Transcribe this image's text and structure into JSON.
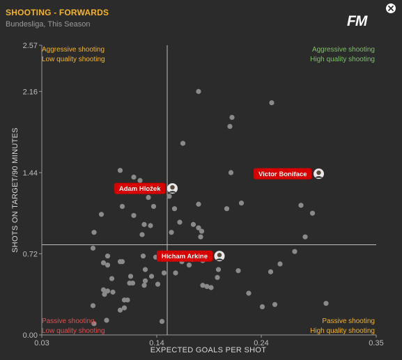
{
  "header": {
    "title": "SHOOTING - FORWARDS",
    "subtitle": "Bundesliga, This Season",
    "logo_text": "FM",
    "close_icon": "close-icon"
  },
  "quadrants": {
    "top_left": {
      "line1": "Aggressive shooting",
      "line2": "Low quality shooting",
      "color": "#f5b326"
    },
    "top_right": {
      "line1": "Aggressive shooting",
      "line2": "High quality shooting",
      "color": "#7fbf6a"
    },
    "bottom_left": {
      "line1": "Passive shooting",
      "line2": "Low quality shooting",
      "color": "#e05050"
    },
    "bottom_right": {
      "line1": "Passive shooting",
      "line2": "High quality shooting",
      "color": "#f5b326"
    }
  },
  "chart_data": {
    "type": "scatter",
    "xlabel": "EXPECTED GOALS PER SHOT",
    "ylabel": "SHOTS ON TARGET/90 MINUTES",
    "xlim": [
      0.03,
      0.35
    ],
    "ylim": [
      0.0,
      2.57
    ],
    "xticks": [
      "0.03",
      "0.14",
      "0.24",
      "0.35"
    ],
    "yticks": [
      "0.00",
      "0.72",
      "1.44",
      "2.16",
      "2.57"
    ],
    "grid": false,
    "reference_lines": {
      "x": 0.15,
      "y": 0.8
    },
    "point_color": "#8a8a8a",
    "highlight_color": "#d60000",
    "highlighted_players": [
      {
        "name": "Adam Hložek",
        "x": 0.155,
        "y": 1.3
      },
      {
        "name": "Victor Boniface",
        "x": 0.295,
        "y": 1.43
      },
      {
        "name": "Hicham Arkine",
        "x": 0.2,
        "y": 0.7
      }
    ],
    "points": [
      [
        0.18,
        2.16
      ],
      [
        0.25,
        2.06
      ],
      [
        0.212,
        1.93
      ],
      [
        0.21,
        1.85
      ],
      [
        0.165,
        1.7
      ],
      [
        0.105,
        1.46
      ],
      [
        0.211,
        1.44
      ],
      [
        0.118,
        1.4
      ],
      [
        0.124,
        1.37
      ],
      [
        0.132,
        1.32
      ],
      [
        0.132,
        1.22
      ],
      [
        0.152,
        1.23
      ],
      [
        0.221,
        1.17
      ],
      [
        0.107,
        1.14
      ],
      [
        0.137,
        1.14
      ],
      [
        0.18,
        1.16
      ],
      [
        0.278,
        1.15
      ],
      [
        0.157,
        1.12
      ],
      [
        0.207,
        1.12
      ],
      [
        0.289,
        1.08
      ],
      [
        0.087,
        1.07
      ],
      [
        0.118,
        1.06
      ],
      [
        0.162,
        1.0
      ],
      [
        0.128,
        0.98
      ],
      [
        0.134,
        0.97
      ],
      [
        0.175,
        0.98
      ],
      [
        0.18,
        0.95
      ],
      [
        0.08,
        0.91
      ],
      [
        0.126,
        0.89
      ],
      [
        0.154,
        0.91
      ],
      [
        0.182,
        0.87
      ],
      [
        0.183,
        0.92
      ],
      [
        0.282,
        0.87
      ],
      [
        0.079,
        0.77
      ],
      [
        0.093,
        0.7
      ],
      [
        0.272,
        0.74
      ],
      [
        0.127,
        0.7
      ],
      [
        0.139,
        0.69
      ],
      [
        0.157,
        0.68
      ],
      [
        0.164,
        0.65
      ],
      [
        0.174,
        0.67
      ],
      [
        0.171,
        0.62
      ],
      [
        0.184,
        0.66
      ],
      [
        0.089,
        0.64
      ],
      [
        0.105,
        0.65
      ],
      [
        0.107,
        0.65
      ],
      [
        0.093,
        0.62
      ],
      [
        0.258,
        0.63
      ],
      [
        0.129,
        0.58
      ],
      [
        0.147,
        0.55
      ],
      [
        0.158,
        0.55
      ],
      [
        0.199,
        0.58
      ],
      [
        0.249,
        0.56
      ],
      [
        0.097,
        0.5
      ],
      [
        0.115,
        0.52
      ],
      [
        0.135,
        0.52
      ],
      [
        0.198,
        0.51
      ],
      [
        0.218,
        0.57
      ],
      [
        0.114,
        0.46
      ],
      [
        0.117,
        0.46
      ],
      [
        0.129,
        0.48
      ],
      [
        0.128,
        0.44
      ],
      [
        0.141,
        0.45
      ],
      [
        0.188,
        0.43
      ],
      [
        0.192,
        0.42
      ],
      [
        0.184,
        0.44
      ],
      [
        0.089,
        0.4
      ],
      [
        0.093,
        0.39
      ],
      [
        0.098,
        0.38
      ],
      [
        0.09,
        0.36
      ],
      [
        0.228,
        0.37
      ],
      [
        0.109,
        0.31
      ],
      [
        0.112,
        0.31
      ],
      [
        0.105,
        0.22
      ],
      [
        0.109,
        0.24
      ],
      [
        0.079,
        0.26
      ],
      [
        0.253,
        0.27
      ],
      [
        0.302,
        0.28
      ],
      [
        0.092,
        0.13
      ],
      [
        0.145,
        0.12
      ],
      [
        0.08,
        0.1
      ],
      [
        0.241,
        0.25
      ]
    ]
  }
}
